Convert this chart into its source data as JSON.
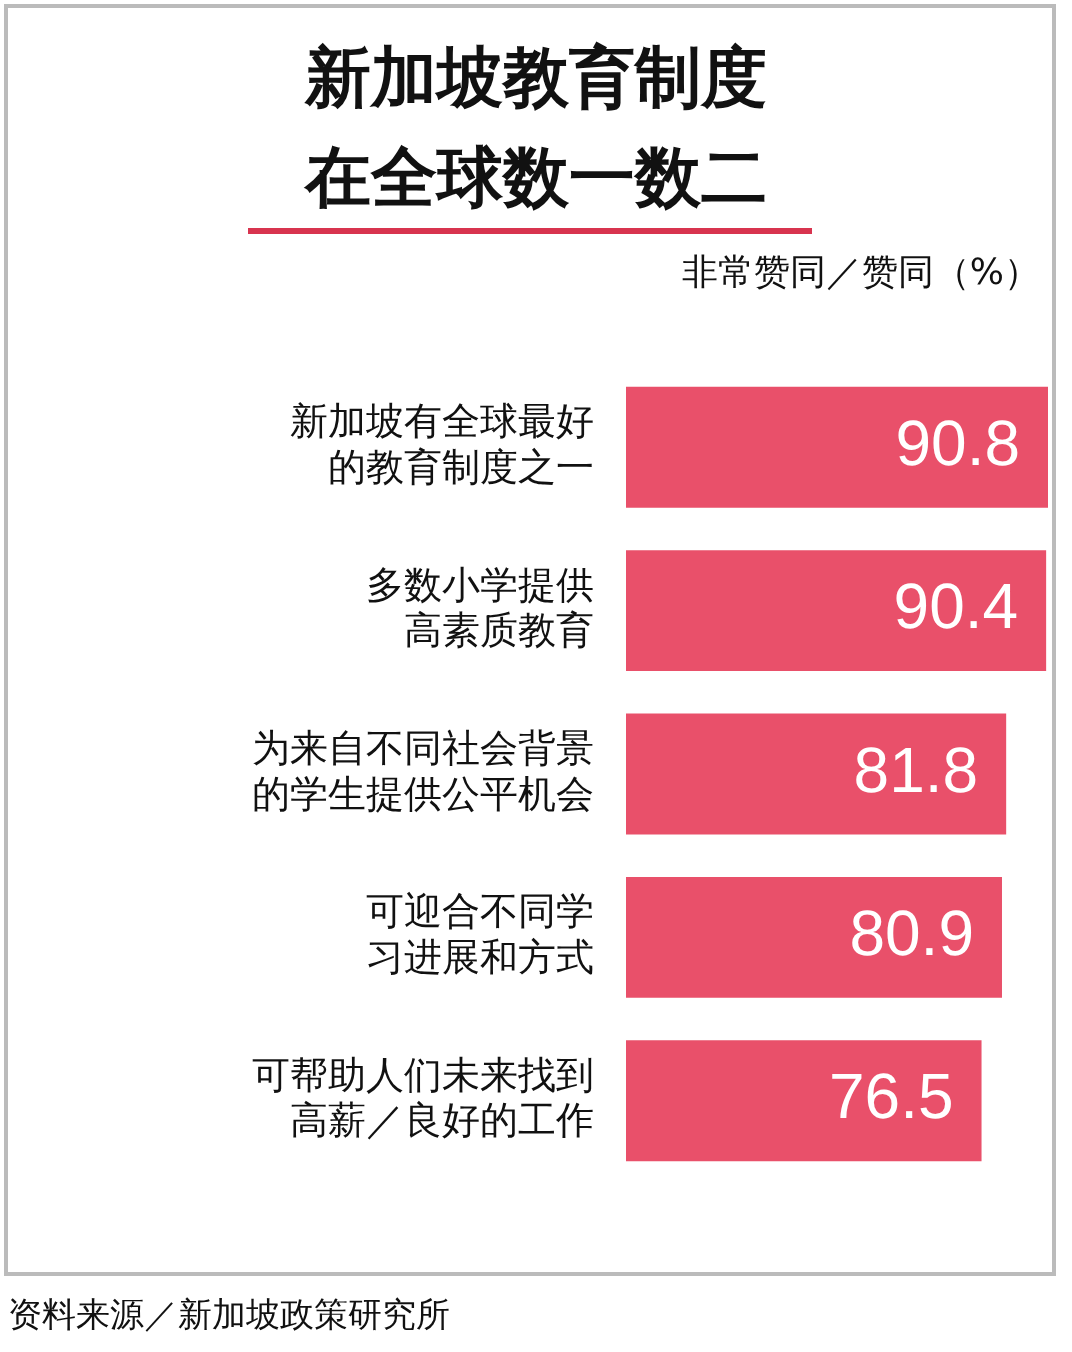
{
  "chart_data": {
    "type": "bar",
    "orientation": "horizontal",
    "title": "新加坡教育制度在全球数一数二",
    "subtitle": "非常赞同／赞同（%）",
    "categories": [
      "新加坡有全球最好的教育制度之一",
      "多数小学提供高素质教育",
      "为来自不同社会背景的学生提供公平机会",
      "可迎合不同学习进展和方式",
      "可帮助人们未来找到高薪／良好的工作"
    ],
    "values": [
      90.8,
      90.4,
      81.8,
      80.9,
      76.5
    ],
    "color": "#e9506a",
    "data_labels": true,
    "annotations": [
      "资料来源／新加坡政策研究所"
    ]
  }
}
